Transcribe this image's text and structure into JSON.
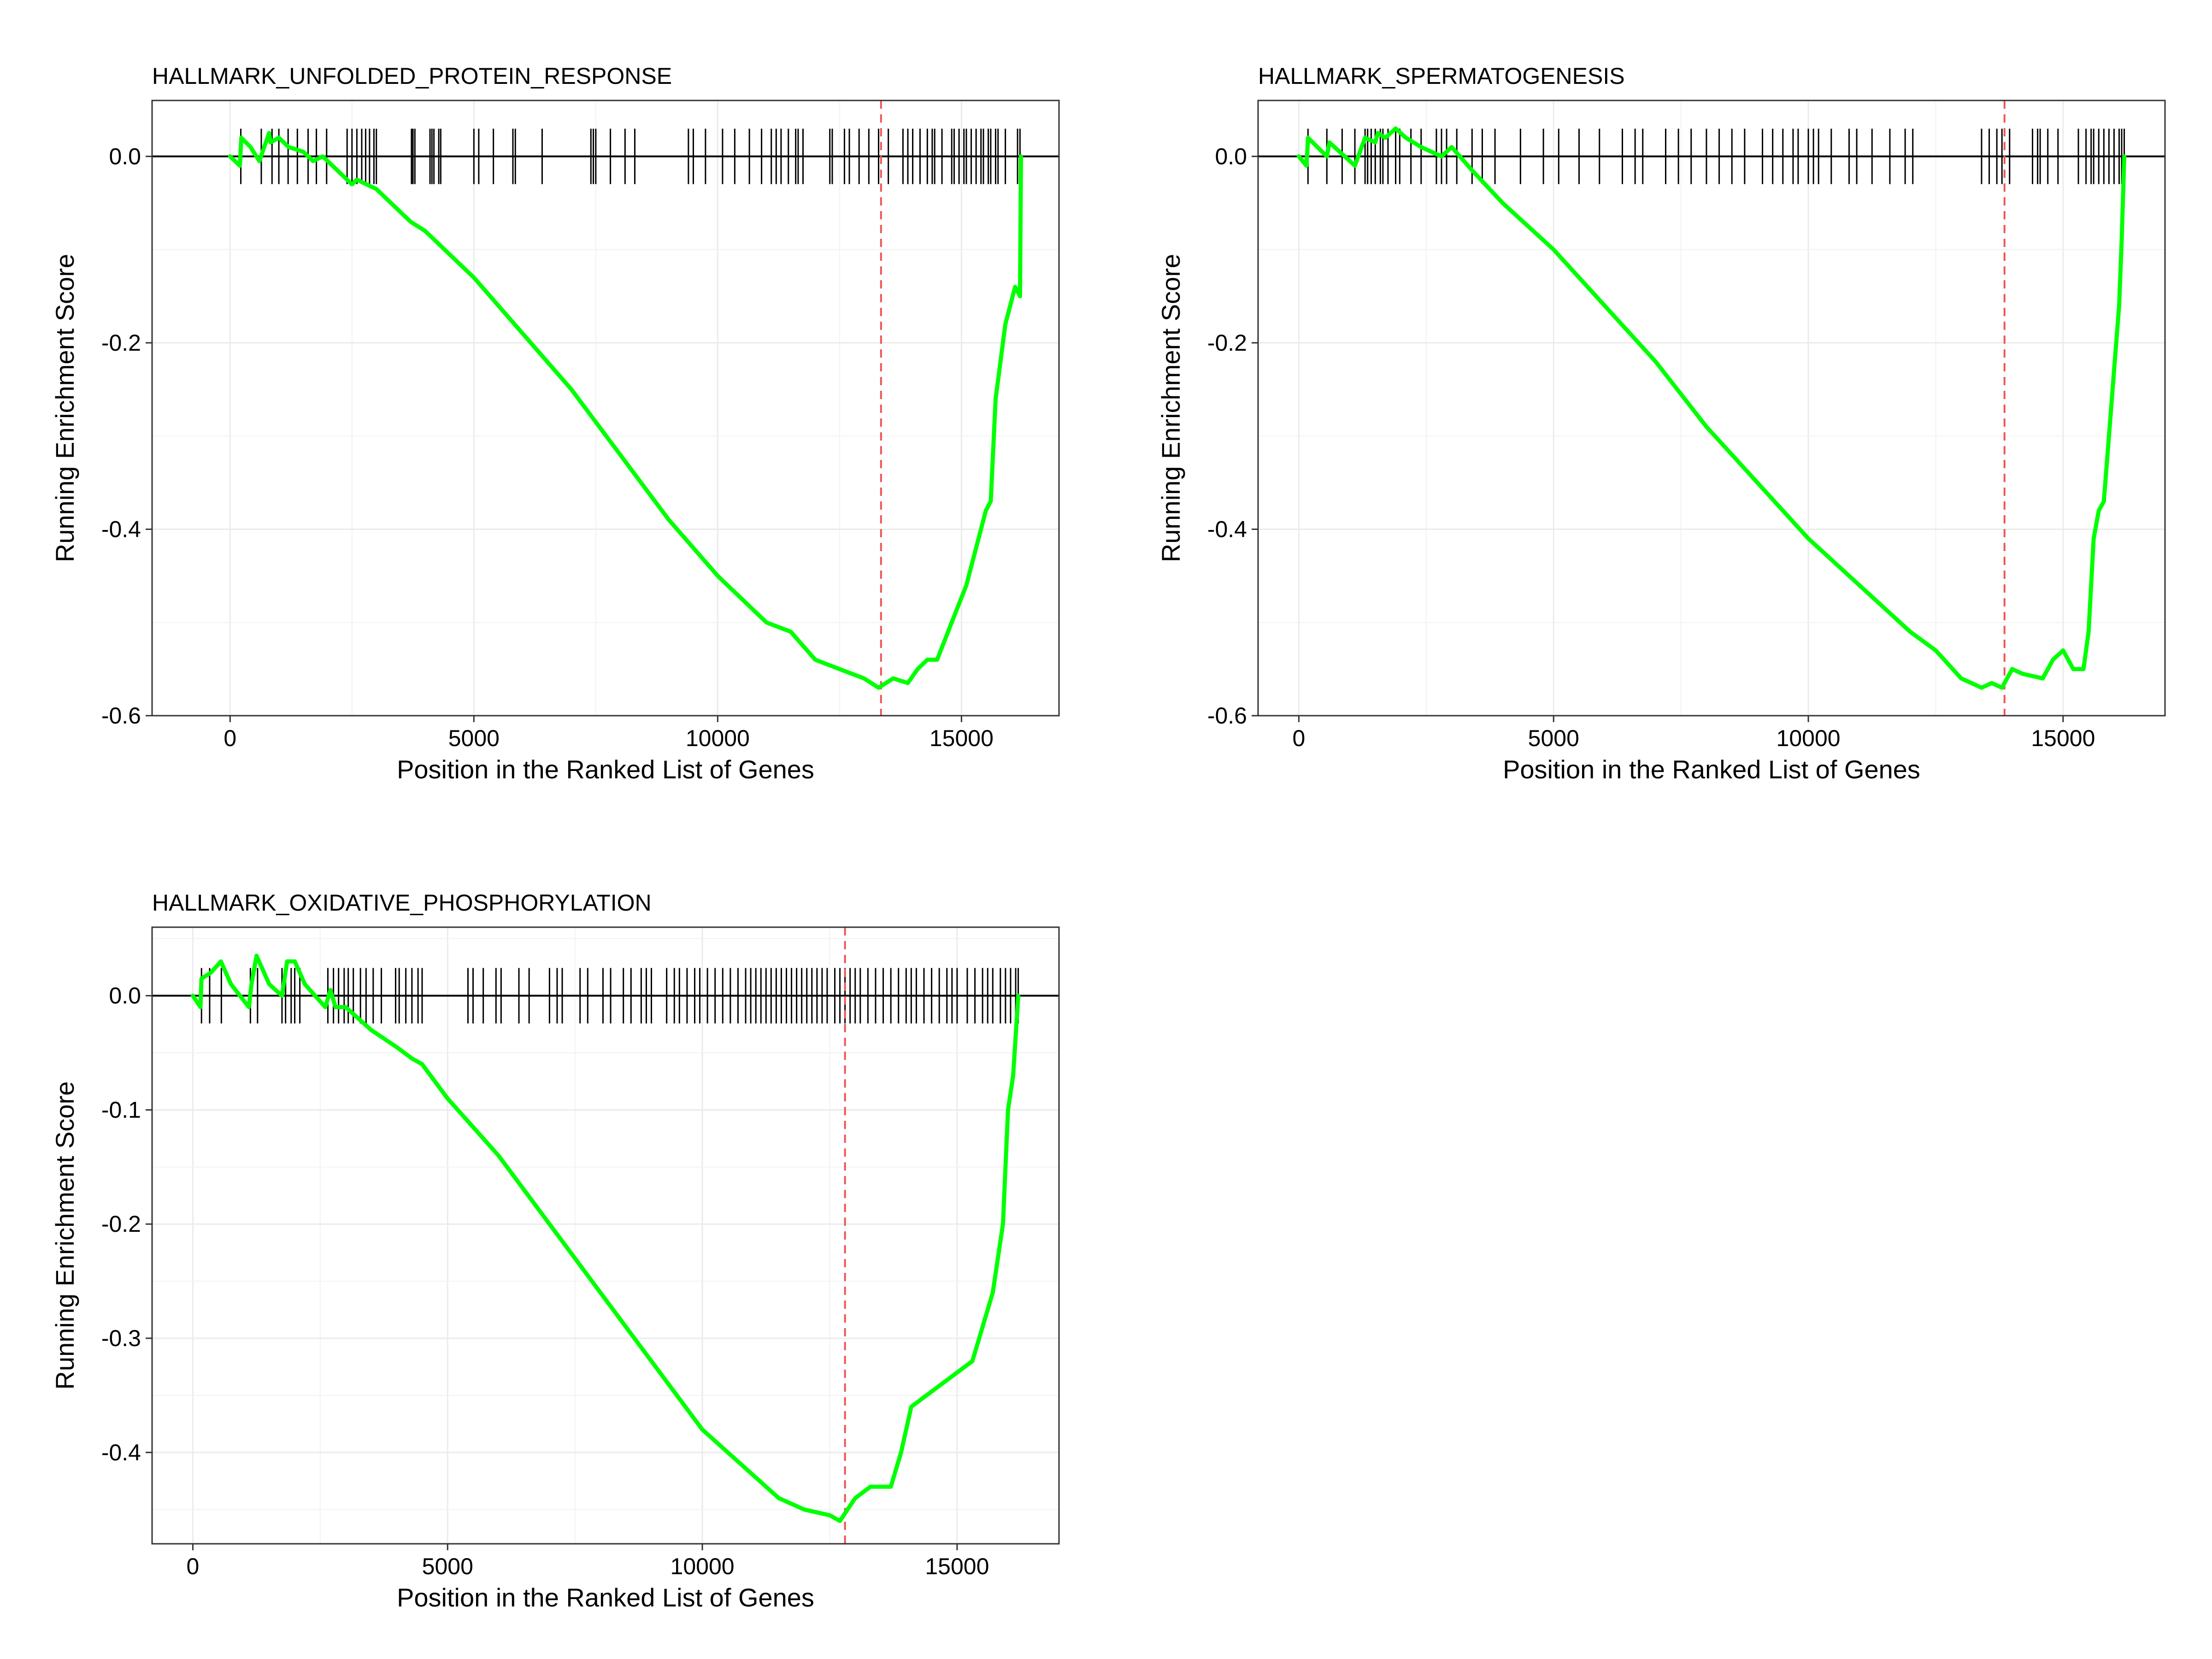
{
  "chart_data": [
    {
      "type": "line",
      "title": "HALLMARK_UNFOLDED_PROTEIN_RESPONSE",
      "xlabel": "Position in the Ranked List of Genes",
      "ylabel": "Running Enrichment Score",
      "xlim": [
        -1600,
        17000
      ],
      "ylim": [
        -0.6,
        0.06
      ],
      "xticks": [
        0,
        5000,
        10000,
        15000
      ],
      "xtick_labels": [
        "0",
        "5000",
        "10000",
        "15000"
      ],
      "yticks": [
        0.0,
        -0.2,
        -0.4,
        -0.6
      ],
      "ytick_labels": [
        "0.0",
        "-0.2",
        "-0.4",
        "-0.6"
      ],
      "grid": true,
      "line_color": "#00ff00",
      "vline_color": "#ee5555",
      "rug_color": "#000000",
      "leading_edge_x": 13350,
      "series": [
        {
          "x": [
            0,
            200,
            230,
            420,
            600,
            800,
            830,
            1000,
            1200,
            1500,
            1700,
            1900,
            2100,
            2300,
            2500,
            2600,
            3000,
            3700,
            4000,
            5000,
            6000,
            7000,
            8000,
            9000,
            10000,
            11000,
            11500,
            12000,
            12500,
            13000,
            13300,
            13600,
            13900,
            14100,
            14300,
            14500,
            14800,
            15100,
            15300,
            15500,
            15600,
            15700,
            15900,
            16100,
            16200,
            16220
          ],
          "y": [
            0.0,
            -0.01,
            0.02,
            0.01,
            -0.005,
            0.025,
            0.015,
            0.02,
            0.01,
            0.005,
            -0.005,
            0.0,
            -0.01,
            -0.02,
            -0.03,
            -0.025,
            -0.035,
            -0.07,
            -0.08,
            -0.13,
            -0.19,
            -0.25,
            -0.32,
            -0.39,
            -0.45,
            -0.5,
            -0.51,
            -0.54,
            -0.55,
            -0.56,
            -0.57,
            -0.56,
            -0.565,
            -0.55,
            -0.54,
            -0.54,
            -0.5,
            -0.46,
            -0.42,
            -0.38,
            -0.37,
            -0.26,
            -0.18,
            -0.14,
            -0.15,
            0.0
          ]
        }
      ],
      "hits": [
        220,
        640,
        860,
        1000,
        1190,
        1380,
        1600,
        1770,
        1980,
        2400,
        2500,
        2600,
        2700,
        2780,
        2860,
        2950,
        3000,
        3720,
        3750,
        3790,
        4100,
        4140,
        4180,
        4280,
        4320,
        5000,
        5100,
        5400,
        5800,
        5850,
        6400,
        7400,
        7450,
        7500,
        7800,
        8100,
        8300,
        9400,
        9500,
        9750,
        10100,
        10350,
        10650,
        10900,
        11100,
        11200,
        11300,
        11450,
        11600,
        11650,
        11750,
        12300,
        12350,
        12600,
        12700,
        12900,
        13100,
        13300,
        13500,
        13800,
        13900,
        14000,
        14150,
        14300,
        14400,
        14450,
        14600,
        14800,
        14850,
        14950,
        15050,
        15100,
        15200,
        15300,
        15400,
        15450,
        15550,
        15600,
        15700,
        15750,
        15900,
        16150,
        16200
      ]
    },
    {
      "type": "line",
      "title": "HALLMARK_SPERMATOGENESIS",
      "xlabel": "Position in the Ranked List of Genes",
      "ylabel": "Running Enrichment Score",
      "xlim": [
        -800,
        17000
      ],
      "ylim": [
        -0.6,
        0.06
      ],
      "xticks": [
        0,
        5000,
        10000,
        15000
      ],
      "xtick_labels": [
        "0",
        "5000",
        "10000",
        "15000"
      ],
      "yticks": [
        0.0,
        -0.2,
        -0.4,
        -0.6
      ],
      "ytick_labels": [
        "0.0",
        "-0.2",
        "-0.4",
        "-0.6"
      ],
      "grid": true,
      "line_color": "#00ff00",
      "vline_color": "#ee5555",
      "rug_color": "#000000",
      "leading_edge_x": 13850,
      "series": [
        {
          "x": [
            0,
            150,
            180,
            550,
            600,
            1100,
            1300,
            1500,
            1550,
            1700,
            1900,
            2100,
            2400,
            2800,
            3000,
            3400,
            4000,
            5000,
            6000,
            7000,
            8000,
            9000,
            10000,
            11000,
            12000,
            12500,
            13000,
            13400,
            13600,
            13800,
            14000,
            14200,
            14600,
            14800,
            15000,
            15200,
            15400,
            15500,
            15600,
            15700,
            15800,
            15900,
            16000,
            16100,
            16150,
            16200
          ],
          "y": [
            0.0,
            -0.01,
            0.02,
            0.0,
            0.015,
            -0.01,
            0.02,
            0.015,
            0.025,
            0.02,
            0.03,
            0.02,
            0.01,
            0.0,
            0.01,
            -0.015,
            -0.05,
            -0.1,
            -0.16,
            -0.22,
            -0.29,
            -0.35,
            -0.41,
            -0.46,
            -0.51,
            -0.53,
            -0.56,
            -0.57,
            -0.565,
            -0.57,
            -0.55,
            -0.555,
            -0.56,
            -0.54,
            -0.53,
            -0.55,
            -0.55,
            -0.51,
            -0.41,
            -0.38,
            -0.37,
            -0.3,
            -0.23,
            -0.16,
            -0.09,
            0.0
          ]
        }
      ],
      "hits": [
        180,
        550,
        850,
        1100,
        1300,
        1350,
        1420,
        1500,
        1600,
        1650,
        1750,
        1900,
        1980,
        2200,
        2400,
        2700,
        2800,
        2900,
        3100,
        3400,
        3600,
        3850,
        4350,
        4800,
        5100,
        5500,
        5900,
        6350,
        6600,
        6750,
        7200,
        7450,
        7700,
        8000,
        8250,
        8500,
        8750,
        9100,
        9300,
        9500,
        9700,
        9800,
        10000,
        10100,
        10200,
        10450,
        10800,
        10950,
        11250,
        11600,
        11900,
        12050,
        13400,
        13550,
        13700,
        13800,
        13950,
        14400,
        14500,
        14550,
        14700,
        14900,
        15300,
        15450,
        15550,
        15600,
        15700,
        15800,
        15900,
        16000,
        16100,
        16150,
        16200
      ]
    },
    {
      "type": "line",
      "title": "HALLMARK_OXIDATIVE_PHOSPHORYLATION",
      "xlabel": "Position in the Ranked List of Genes",
      "ylabel": "Running Enrichment Score",
      "xlim": [
        -800,
        17000
      ],
      "ylim": [
        -0.48,
        0.06
      ],
      "xticks": [
        0,
        5000,
        10000,
        15000
      ],
      "xtick_labels": [
        "0",
        "5000",
        "10000",
        "15000"
      ],
      "yticks": [
        0.0,
        -0.1,
        -0.2,
        -0.3,
        -0.4
      ],
      "ytick_labels": [
        "0.0",
        "-0.1",
        "-0.2",
        "-0.3",
        "-0.4"
      ],
      "grid": true,
      "line_color": "#00ff00",
      "vline_color": "#ee5555",
      "rug_color": "#000000",
      "leading_edge_x": 12800,
      "series": [
        {
          "x": [
            0,
            150,
            170,
            350,
            550,
            750,
            1100,
            1150,
            1250,
            1500,
            1750,
            1850,
            2000,
            2200,
            2500,
            2600,
            2700,
            2800,
            3000,
            3500,
            4000,
            4300,
            4500,
            5000,
            6000,
            7000,
            8000,
            9000,
            10000,
            11000,
            11500,
            12000,
            12500,
            12700,
            13000,
            13300,
            13700,
            13900,
            14100,
            14400,
            14700,
            15000,
            15300,
            15500,
            15700,
            15900,
            16000,
            16100,
            16200
          ],
          "y": [
            0.0,
            -0.01,
            0.015,
            0.02,
            0.03,
            0.01,
            -0.01,
            0.01,
            0.035,
            0.01,
            0.0,
            0.03,
            0.03,
            0.01,
            -0.005,
            -0.01,
            0.005,
            -0.01,
            -0.01,
            -0.03,
            -0.045,
            -0.055,
            -0.06,
            -0.09,
            -0.14,
            -0.2,
            -0.26,
            -0.32,
            -0.38,
            -0.42,
            -0.44,
            -0.45,
            -0.455,
            -0.46,
            -0.44,
            -0.43,
            -0.43,
            -0.4,
            -0.36,
            -0.35,
            -0.34,
            -0.33,
            -0.32,
            -0.29,
            -0.26,
            -0.2,
            -0.1,
            -0.07,
            0.0
          ]
        }
      ],
      "hits": [
        170,
        330,
        560,
        1130,
        1270,
        1750,
        1820,
        1930,
        2000,
        2100,
        2650,
        2760,
        2860,
        2970,
        3050,
        3150,
        3290,
        3400,
        3540,
        3700,
        3980,
        4050,
        4180,
        4300,
        4420,
        4500,
        5400,
        5500,
        5700,
        5950,
        6050,
        6400,
        6600,
        7000,
        7150,
        7250,
        7600,
        7750,
        8050,
        8200,
        8450,
        8600,
        8800,
        8900,
        9000,
        9300,
        9450,
        9550,
        9700,
        9850,
        9950,
        10100,
        10250,
        10400,
        10550,
        10700,
        10850,
        10950,
        11050,
        11150,
        11250,
        11350,
        11450,
        11550,
        11650,
        11750,
        11850,
        11950,
        12050,
        12150,
        12250,
        12350,
        12450,
        12600,
        12700,
        12800,
        12900,
        13000,
        13100,
        13250,
        13400,
        13550,
        13700,
        13850,
        14000,
        14100,
        14200,
        14350,
        14500,
        14650,
        14800,
        14900,
        15000,
        15200,
        15350,
        15500,
        15600,
        15700,
        15850,
        15950,
        16050,
        16150,
        16200
      ]
    }
  ]
}
